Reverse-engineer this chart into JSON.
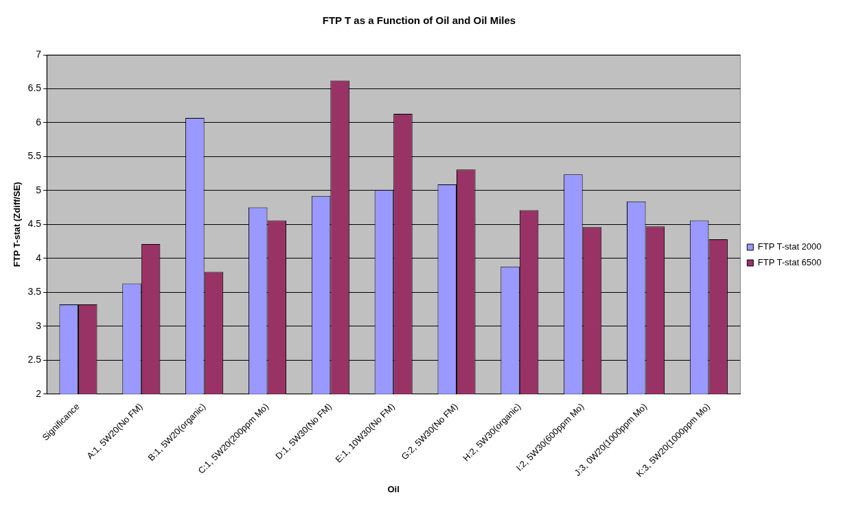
{
  "chart_data": {
    "type": "bar",
    "title": "FTP T as a Function of Oil and Oil Miles",
    "xlabel": "Oil",
    "ylabel": "FTP T-stat (Zdiff/SE)",
    "categories": [
      "Significance",
      "A:1, 5W20(No FM)",
      "B:1, 5W20(organic)",
      "C:1, 5W20(200ppm Mo)",
      "D:1, 5W30(No FM)",
      "E:1, 10W30(No FM)",
      "G:2, 5W30(No FM)",
      "H:2, 5W30(organic)",
      "I:2, 5W30(600ppm Mo)",
      "J:3, 0W20(1000ppm Mo)",
      "K:3, 5W20(1000ppm Mo)"
    ],
    "series": [
      {
        "name": "FTP T-stat 2000",
        "color": "#9999ff",
        "values": [
          3.32,
          3.63,
          6.07,
          4.75,
          4.92,
          5.01,
          5.09,
          3.88,
          5.24,
          4.84,
          4.56
        ]
      },
      {
        "name": "FTP T-stat 6500",
        "color": "#993366",
        "values": [
          3.32,
          4.21,
          3.8,
          4.56,
          6.62,
          6.13,
          5.31,
          4.71,
          4.46,
          4.47,
          4.28
        ]
      }
    ],
    "ylim": [
      2,
      7
    ],
    "yticks": [
      2,
      2.5,
      3,
      3.5,
      4,
      4.5,
      5,
      5.5,
      6,
      6.5,
      7
    ],
    "grid": "y",
    "legend": "right"
  }
}
